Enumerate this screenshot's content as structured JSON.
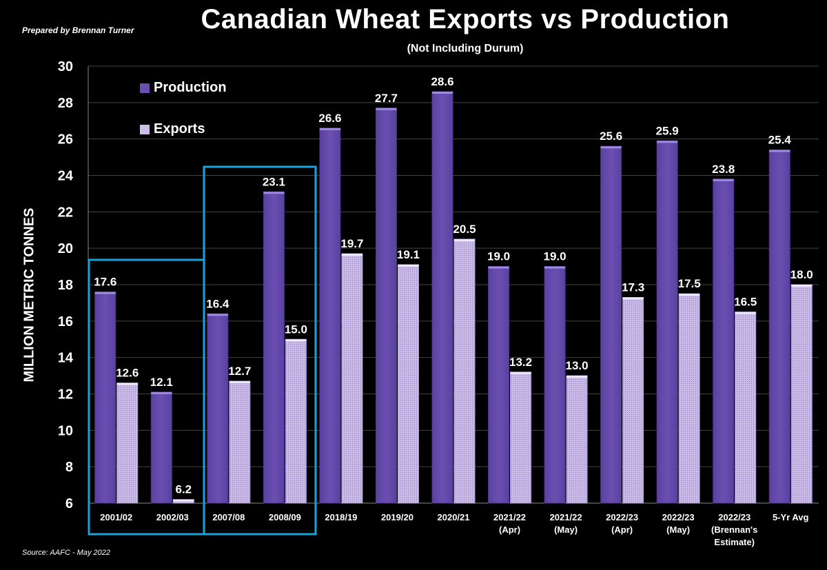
{
  "header": {
    "title": "Canadian Wheat Exports vs Production",
    "subtitle": "(Not Including Durum)",
    "prepared_by": "Prepared by Brennan Turner",
    "source": "Source: AAFC -  May 2022"
  },
  "colors": {
    "production": "#6a4fb0",
    "exports": "#cdbfe8",
    "highlight_box": "#1aa3d9",
    "background": "#000000"
  },
  "chart_data": {
    "type": "bar",
    "ylabel": "MILLION METRIC TONNES",
    "ylim": [
      6,
      30
    ],
    "yticks": [
      6,
      8,
      10,
      12,
      14,
      16,
      18,
      20,
      22,
      24,
      26,
      28,
      30
    ],
    "grid": true,
    "legend_position": "top-left",
    "categories": [
      [
        "2001/02"
      ],
      [
        "2002/03"
      ],
      [
        "2007/08"
      ],
      [
        "2008/09"
      ],
      [
        "2018/19"
      ],
      [
        "2019/20"
      ],
      [
        "2020/21"
      ],
      [
        "2021/22",
        "(Apr)"
      ],
      [
        "2021/22",
        "(May)"
      ],
      [
        "2022/23",
        "(Apr)"
      ],
      [
        "2022/23",
        "(May)"
      ],
      [
        "2022/23",
        "(Brennan's",
        "Estimate)"
      ],
      [
        "5-Yr Avg"
      ]
    ],
    "series": [
      {
        "name": "Production",
        "values": [
          17.6,
          12.1,
          16.4,
          23.1,
          26.6,
          27.7,
          28.6,
          19.0,
          19.0,
          25.6,
          25.9,
          23.8,
          25.4
        ]
      },
      {
        "name": "Exports",
        "values": [
          12.6,
          6.2,
          12.7,
          15.0,
          19.7,
          19.1,
          20.5,
          13.2,
          13.0,
          17.3,
          17.5,
          16.5,
          18.0
        ]
      }
    ],
    "highlight_groups": [
      [
        0,
        1
      ],
      [
        2,
        3
      ]
    ]
  }
}
